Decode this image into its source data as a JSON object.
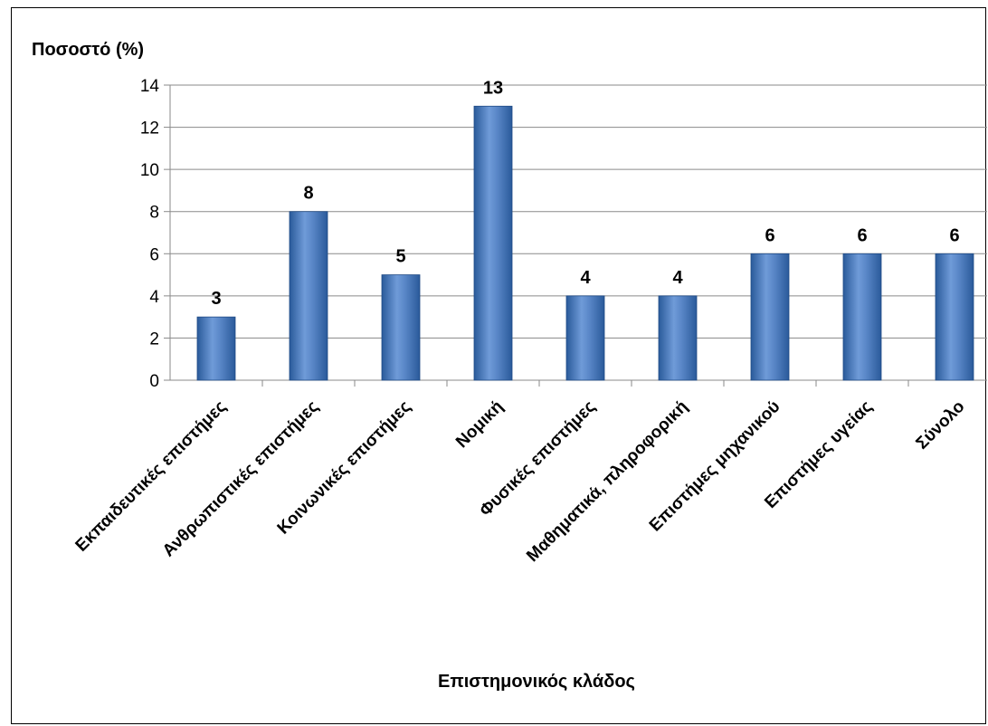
{
  "chart_data": {
    "type": "bar",
    "ylabel": "Ποσοστό (%)",
    "xlabel": "Επιστημονικός κλάδος",
    "categories": [
      "Εκπαιδευτικές επιστήμες",
      "Ανθρωπιστικές επιστήμες",
      "Κοινωνικές επιστήμες",
      "Νομική",
      "Φυσικές επιστήμες",
      "Μαθηματικά, πληροφορική",
      "Επιστήμες μηχανικού",
      "Επιστήμες υγείας",
      "Σύνολο"
    ],
    "values": [
      3,
      8,
      5,
      13,
      4,
      4,
      6,
      6,
      6
    ],
    "data_labels": [
      "3",
      "8",
      "5",
      "13",
      "4",
      "4",
      "6",
      "6",
      "6"
    ],
    "ylim": [
      0,
      14
    ],
    "yticks": [
      "0",
      "2",
      "4",
      "6",
      "8",
      "10",
      "12",
      "14"
    ],
    "grid": true,
    "legend": "none",
    "colors": {
      "bar_dark": "#2a5a9a",
      "bar_light": "#6f9bd8",
      "grid": "#8a8a8a",
      "axis": "#8a8a8a",
      "text": "#000000"
    }
  }
}
